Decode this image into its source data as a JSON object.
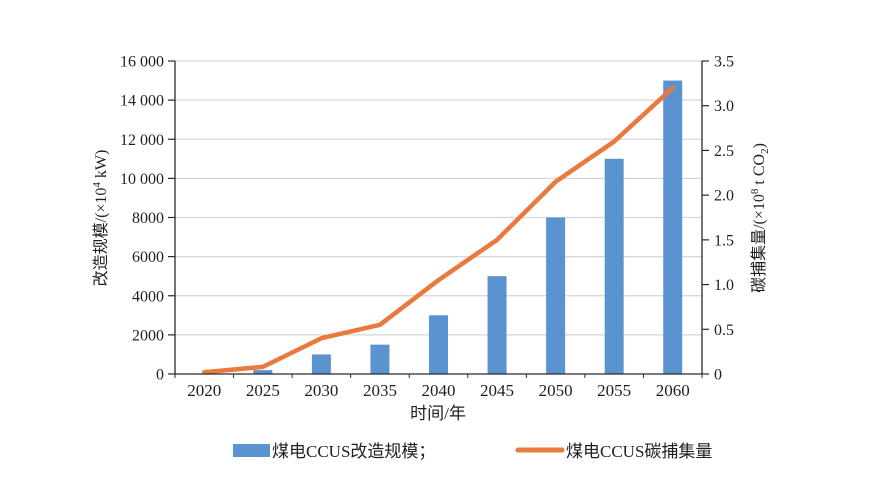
{
  "chart_data": {
    "type": "bar",
    "subtype": "combo-bar-line-dual-axis",
    "categories": [
      "2020",
      "2025",
      "2030",
      "2035",
      "2040",
      "2045",
      "2050",
      "2055",
      "2060"
    ],
    "series": [
      {
        "name": "煤电CCUS改造规模",
        "type": "bar",
        "axis": "left",
        "color": "#5B93D1",
        "values": [
          0,
          200,
          1000,
          1500,
          3000,
          5000,
          8000,
          11000,
          15000
        ]
      },
      {
        "name": "煤电CCUS碳捕集量",
        "type": "line",
        "axis": "right",
        "color": "#E9793C",
        "values": [
          0.02,
          0.08,
          0.4,
          0.55,
          1.05,
          1.5,
          2.15,
          2.6,
          3.2
        ]
      }
    ],
    "title": "",
    "xlabel": "时间/年",
    "ylabel_left": "改造规模/(×10⁴ kW)",
    "ylabel_right": "碳捕集量/(×10⁸ t CO₂)",
    "ylim_left": [
      0,
      16000
    ],
    "ylim_right": [
      0,
      3.5
    ],
    "y_left_tick_labels": [
      "0",
      "2000",
      "4000",
      "6000",
      "8000",
      "10 000",
      "12 000",
      "14 000",
      "16 000"
    ],
    "y_right_tick_labels": [
      "0",
      "0.5",
      "1.0",
      "1.5",
      "2.0",
      "2.5",
      "3.0",
      "3.5"
    ],
    "grid": true,
    "legend_position": "bottom"
  },
  "axes": {
    "x_title": "时间/年",
    "left_title_pre": "改造规模/(×10",
    "left_title_sup": "4",
    "left_title_post": " kW)",
    "right_title_pre": "碳捕集量/(×10",
    "right_title_sup": "8",
    "right_title_mid": " t CO",
    "right_title_sub": "2",
    "right_title_post": ")"
  },
  "legend": {
    "bar_label": "煤电CCUS改造规模；",
    "line_label": "煤电CCUS碳捕集量"
  },
  "colors": {
    "bar": "#5B93D1",
    "line": "#E9793C",
    "grid": "#D6D6D6",
    "axis": "#2a2a2a",
    "text": "#1f1f1f",
    "background": "#FFFFFF"
  }
}
